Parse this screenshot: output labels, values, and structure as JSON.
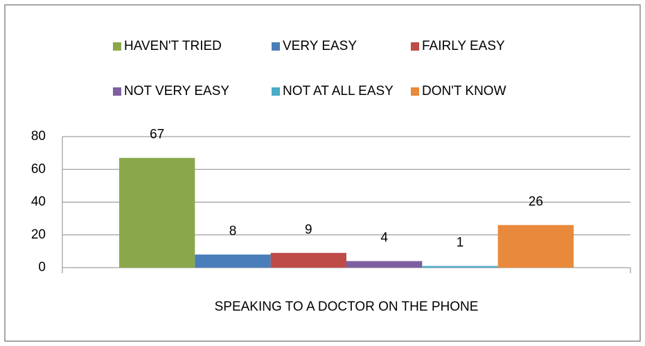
{
  "chart_data": {
    "type": "bar",
    "categories": [
      "SPEAKING TO A DOCTOR ON THE PHONE"
    ],
    "series": [
      {
        "name": "HAVEN'T TRIED",
        "color": "#8aa84b",
        "values": [
          67
        ]
      },
      {
        "name": "VERY EASY",
        "color": "#4a7ebb",
        "values": [
          8
        ]
      },
      {
        "name": "FAIRLY EASY",
        "color": "#be4b48",
        "values": [
          9
        ]
      },
      {
        "name": "NOT VERY EASY",
        "color": "#7d5fa0",
        "values": [
          4
        ]
      },
      {
        "name": "NOT AT ALL EASY",
        "color": "#4bacc6",
        "values": [
          1
        ]
      },
      {
        "name": "DON'T KNOW",
        "color": "#e8893c",
        "values": [
          26
        ]
      }
    ],
    "ylim": [
      0,
      80
    ],
    "yticks": [
      0,
      20,
      40,
      60,
      80
    ],
    "grid": true,
    "legend": "top"
  }
}
